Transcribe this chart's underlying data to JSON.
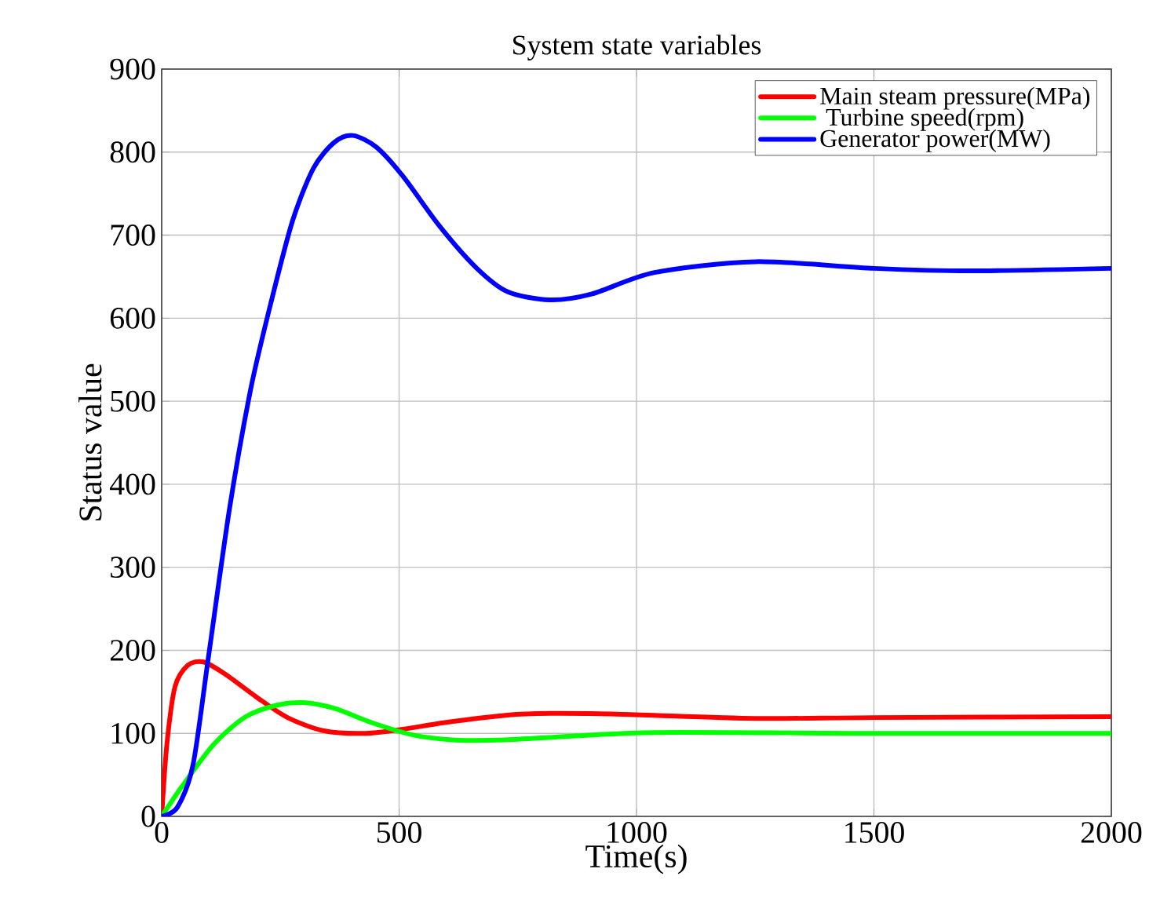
{
  "chart_data": {
    "type": "line",
    "title": "System state variables",
    "xlabel": "Time(s)",
    "ylabel": "Status value",
    "xlim": [
      0,
      2000
    ],
    "xticks": [
      0,
      500,
      1000,
      1500,
      2000
    ],
    "ylim": [
      0,
      900
    ],
    "yticks": [
      0,
      100,
      200,
      300,
      400,
      500,
      600,
      700,
      800,
      900
    ],
    "grid": true,
    "legend": "top right",
    "line_style": "solid",
    "marker": "none",
    "series": [
      {
        "name": "Main steam pressure(MPa)",
        "color": "#ff0000",
        "x": [
          0,
          11,
          28,
          55,
          88,
          132,
          199,
          265,
          342,
          430,
          508,
          596,
          728,
          817,
          971,
          1250,
          1500,
          2000
        ],
        "values": [
          0,
          87,
          156,
          182,
          186,
          172,
          144,
          119,
          103,
          100,
          105,
          113,
          122,
          124,
          123,
          118,
          119,
          120
        ]
      },
      {
        "name": " Turbine speed(rpm)",
        "color": "#00ff00",
        "x": [
          0,
          44,
          110,
          177,
          243,
          298,
          364,
          442,
          530,
          618,
          706,
          817,
          1038,
          1500,
          2000
        ],
        "values": [
          0,
          37,
          87,
          120,
          134,
          137,
          130,
          113,
          98,
          92,
          92,
          95,
          101,
          100,
          100
        ]
      },
      {
        "name": "Generator power(MW)",
        "color": "#0000ff",
        "x": [
          0,
          33,
          66,
          99,
          143,
          188,
          232,
          276,
          320,
          364,
          403,
          452,
          508,
          585,
          662,
          728,
          817,
          905,
          1038,
          1250,
          1500,
          1700,
          2000
        ],
        "values": [
          0,
          11,
          62,
          194,
          371,
          516,
          623,
          718,
          781,
          812,
          820,
          806,
          771,
          711,
          661,
          632,
          622,
          629,
          655,
          668,
          660,
          657,
          660
        ]
      }
    ]
  }
}
